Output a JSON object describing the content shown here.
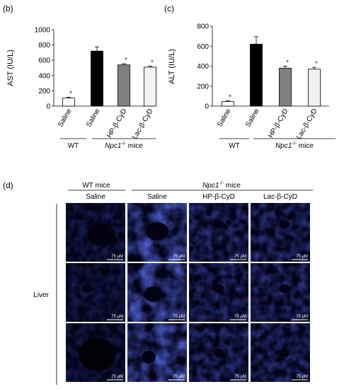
{
  "panels": {
    "b": "(b)",
    "c": "(c)",
    "d": "(d)"
  },
  "chart_data": [
    {
      "type": "bar",
      "ylabel": "AST (IU/L)",
      "ylim": [
        0,
        1000
      ],
      "yticks": [
        "0",
        "200",
        "400",
        "600",
        "800",
        "1000"
      ],
      "categories": [
        "Saline",
        "Saline",
        "HP-β-CyD",
        "Lac-β-CyD"
      ],
      "values": [
        105,
        720,
        540,
        510
      ],
      "errors": [
        10,
        55,
        15,
        12
      ],
      "significance": [
        "*",
        "",
        "*",
        "*"
      ],
      "bar_colors": [
        "#ffffff",
        "#000000",
        "#808080",
        "#f2f2f2"
      ],
      "groups": [
        {
          "label": "WT",
          "italic_prefix": "",
          "sup": "",
          "suffix": "WT"
        },
        {
          "label": "Npc1-/- mice",
          "italic_prefix": "Npc1",
          "sup": "-/-",
          "suffix": " mice"
        }
      ]
    },
    {
      "type": "bar",
      "ylabel": "ALT (IU/L)",
      "ylim": [
        0,
        800
      ],
      "yticks": [
        "0",
        "200",
        "400",
        "600",
        "800"
      ],
      "categories": [
        "Saline",
        "Saline",
        "HP-β-CyD",
        "Lac-β-CyD"
      ],
      "values": [
        45,
        620,
        380,
        370
      ],
      "errors": [
        8,
        75,
        20,
        18
      ],
      "significance": [
        "*",
        "",
        "*",
        "*"
      ],
      "bar_colors": [
        "#ffffff",
        "#000000",
        "#808080",
        "#f2f2f2"
      ],
      "groups": [
        {
          "label": "WT",
          "italic_prefix": "",
          "sup": "",
          "suffix": "WT"
        },
        {
          "label": "Npc1-/- mice",
          "italic_prefix": "Npc1",
          "sup": "-/-",
          "suffix": " mice"
        }
      ]
    }
  ],
  "micrograph": {
    "group_wt": "WT mice",
    "group_npc_italic": "Npc1",
    "group_npc_sup": "-/-",
    "group_npc_suffix": " mice",
    "columns": [
      "Saline",
      "Saline",
      "HP-β-CyD",
      "Lac-β-CyD"
    ],
    "row_label": "Liver",
    "scale_label": "75 μM",
    "stain_color": "#1a2dd6"
  }
}
